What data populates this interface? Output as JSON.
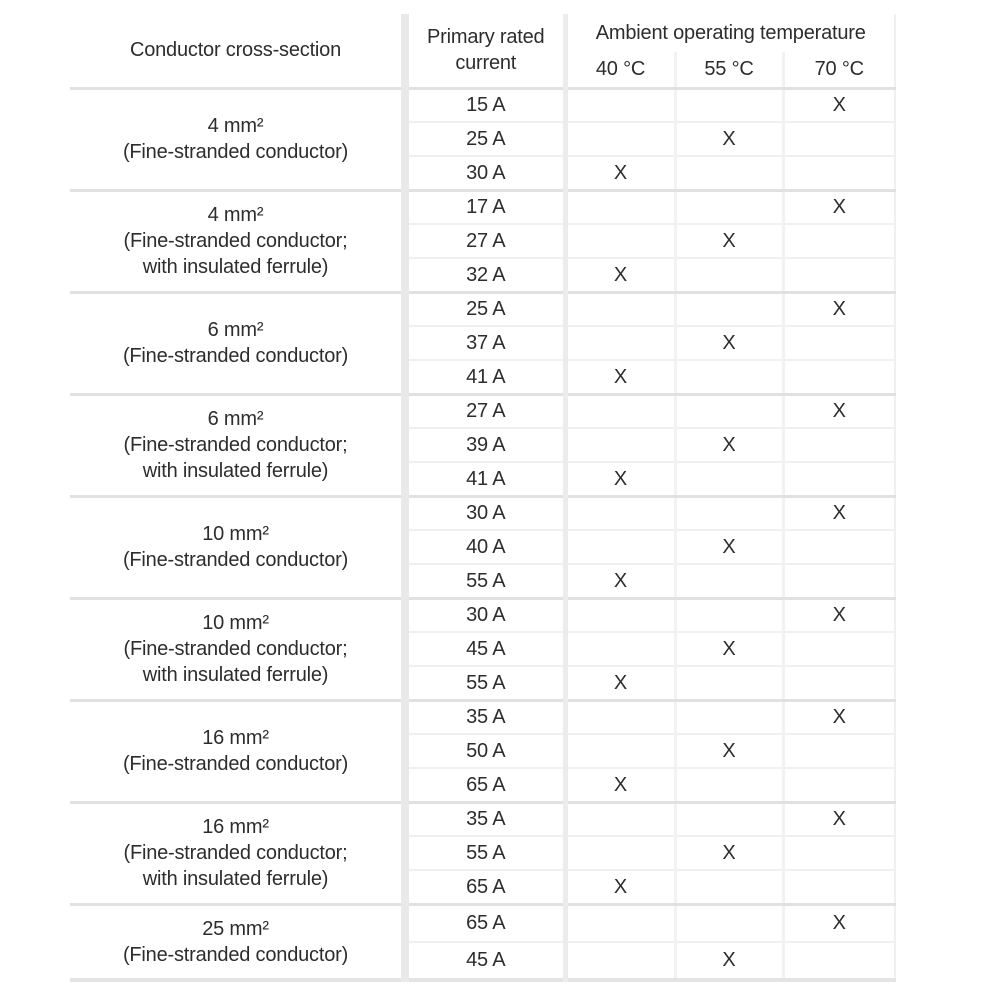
{
  "table": {
    "headers": {
      "conductor": "Conductor cross-section",
      "current": "Primary rated current",
      "ambient": "Ambient operating temperature",
      "temps": [
        "40 °C",
        "55 °C",
        "70 °C"
      ]
    },
    "groups": [
      {
        "conductor_lines": [
          "4 mm²",
          "(Fine-stranded conductor)"
        ],
        "rows": [
          {
            "current": "15 A",
            "marks": [
              "",
              "",
              "X"
            ]
          },
          {
            "current": "25 A",
            "marks": [
              "",
              "X",
              ""
            ]
          },
          {
            "current": "30 A",
            "marks": [
              "X",
              "",
              ""
            ]
          }
        ]
      },
      {
        "conductor_lines": [
          "4 mm²",
          "(Fine-stranded conductor;",
          "with insulated ferrule)"
        ],
        "rows": [
          {
            "current": "17 A",
            "marks": [
              "",
              "",
              "X"
            ]
          },
          {
            "current": "27 A",
            "marks": [
              "",
              "X",
              ""
            ]
          },
          {
            "current": "32 A",
            "marks": [
              "X",
              "",
              ""
            ]
          }
        ]
      },
      {
        "conductor_lines": [
          "6 mm²",
          "(Fine-stranded conductor)"
        ],
        "rows": [
          {
            "current": "25 A",
            "marks": [
              "",
              "",
              "X"
            ]
          },
          {
            "current": "37 A",
            "marks": [
              "",
              "X",
              ""
            ]
          },
          {
            "current": "41 A",
            "marks": [
              "X",
              "",
              ""
            ]
          }
        ]
      },
      {
        "conductor_lines": [
          "6 mm²",
          "(Fine-stranded conductor;",
          "with insulated ferrule)"
        ],
        "rows": [
          {
            "current": "27 A",
            "marks": [
              "",
              "",
              "X"
            ]
          },
          {
            "current": "39 A",
            "marks": [
              "",
              "X",
              ""
            ]
          },
          {
            "current": "41 A",
            "marks": [
              "X",
              "",
              ""
            ]
          }
        ]
      },
      {
        "conductor_lines": [
          "10 mm²",
          "(Fine-stranded conductor)"
        ],
        "rows": [
          {
            "current": "30 A",
            "marks": [
              "",
              "",
              "X"
            ]
          },
          {
            "current": "40 A",
            "marks": [
              "",
              "X",
              ""
            ]
          },
          {
            "current": "55 A",
            "marks": [
              "X",
              "",
              ""
            ]
          }
        ]
      },
      {
        "conductor_lines": [
          "10 mm²",
          "(Fine-stranded conductor;",
          "with insulated ferrule)"
        ],
        "rows": [
          {
            "current": "30 A",
            "marks": [
              "",
              "",
              "X"
            ]
          },
          {
            "current": "45 A",
            "marks": [
              "",
              "X",
              ""
            ]
          },
          {
            "current": "55 A",
            "marks": [
              "X",
              "",
              ""
            ]
          }
        ]
      },
      {
        "conductor_lines": [
          "16 mm²",
          "(Fine-stranded conductor)"
        ],
        "rows": [
          {
            "current": "35 A",
            "marks": [
              "",
              "",
              "X"
            ]
          },
          {
            "current": "50 A",
            "marks": [
              "",
              "X",
              ""
            ]
          },
          {
            "current": "65 A",
            "marks": [
              "X",
              "",
              ""
            ]
          }
        ]
      },
      {
        "conductor_lines": [
          "16 mm²",
          "(Fine-stranded conductor;",
          "with insulated ferrule)"
        ],
        "rows": [
          {
            "current": "35 A",
            "marks": [
              "",
              "",
              "X"
            ]
          },
          {
            "current": "55 A",
            "marks": [
              "",
              "X",
              ""
            ]
          },
          {
            "current": "65 A",
            "marks": [
              "X",
              "",
              ""
            ]
          }
        ]
      },
      {
        "conductor_lines": [
          "25 mm²",
          "(Fine-stranded conductor)"
        ],
        "rows": [
          {
            "current": "65 A",
            "marks": [
              "",
              "",
              "X"
            ]
          },
          {
            "current": "45 A",
            "marks": [
              "",
              "X",
              ""
            ]
          }
        ]
      }
    ]
  }
}
